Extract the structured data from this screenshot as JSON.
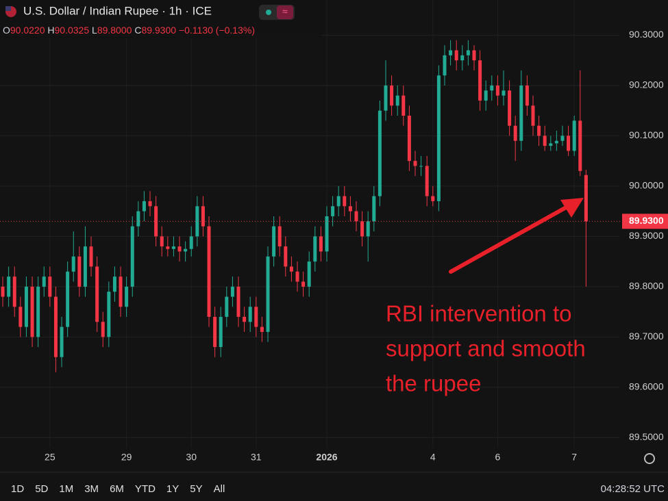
{
  "header": {
    "symbol": "U.S. Dollar / Indian Rupee · 1h · ICE",
    "ohlc": [
      {
        "key": "O",
        "value": "90.0220"
      },
      {
        "key": "H",
        "value": "90.0325"
      },
      {
        "key": "L",
        "value": "89.8000"
      },
      {
        "key": "C",
        "value": "89.9300"
      }
    ],
    "change": "−0.1130 (−0.13%)"
  },
  "chart_data": {
    "type": "candlestick",
    "open": [
      89.8,
      89.78,
      89.82,
      89.76,
      89.72,
      89.8,
      89.7,
      89.8,
      89.82,
      89.78,
      89.66,
      89.72,
      89.83,
      89.86,
      89.8,
      89.88,
      89.84,
      89.73,
      89.7,
      89.79,
      89.82,
      89.76,
      89.8,
      89.92,
      89.95,
      89.97,
      89.96,
      89.9,
      89.88,
      89.875,
      89.88,
      89.87,
      89.875,
      89.9,
      89.96,
      89.92,
      89.74,
      89.68,
      89.74,
      89.78,
      89.8,
      89.74,
      89.73,
      89.76,
      89.72,
      89.71,
      89.86,
      89.92,
      89.88,
      89.84,
      89.83,
      89.81,
      89.8,
      89.85,
      89.9,
      89.87,
      89.94,
      89.96,
      89.98,
      89.96,
      89.95,
      89.93,
      89.9,
      89.93,
      89.98,
      90.15,
      90.2,
      90.16,
      90.18,
      90.14,
      90.05,
      90.04,
      90.04,
      89.98,
      89.97,
      90.22,
      90.26,
      90.27,
      90.25,
      90.26,
      90.27,
      90.25,
      90.17,
      90.19,
      90.2,
      90.18,
      90.19,
      90.12,
      90.09,
      90.2,
      90.16,
      90.12,
      90.1,
      90.08,
      90.085,
      90.09,
      90.1,
      90.07,
      90.13,
      90.022
    ],
    "high": [
      89.82,
      89.84,
      89.84,
      89.78,
      89.82,
      89.82,
      89.82,
      89.84,
      89.84,
      89.8,
      89.74,
      89.85,
      89.91,
      89.88,
      89.92,
      89.9,
      89.86,
      89.75,
      89.81,
      89.84,
      89.84,
      89.82,
      89.94,
      89.97,
      89.99,
      89.99,
      89.98,
      89.92,
      89.9,
      89.9,
      89.9,
      89.89,
      89.92,
      89.98,
      89.98,
      89.94,
      89.76,
      89.76,
      89.8,
      89.82,
      89.82,
      89.76,
      89.78,
      89.78,
      89.74,
      89.88,
      89.94,
      89.94,
      89.9,
      89.86,
      89.85,
      89.83,
      89.87,
      89.92,
      89.92,
      89.96,
      89.98,
      90.0,
      90.0,
      89.98,
      89.97,
      89.95,
      89.95,
      90.0,
      90.17,
      90.25,
      90.22,
      90.2,
      90.2,
      90.16,
      90.07,
      90.06,
      90.06,
      90.0,
      90.24,
      90.28,
      90.29,
      90.29,
      90.28,
      90.29,
      90.28,
      90.27,
      90.21,
      90.22,
      90.22,
      90.23,
      90.21,
      90.14,
      90.23,
      90.22,
      90.18,
      90.14,
      90.12,
      90.1,
      90.11,
      90.12,
      90.12,
      90.14,
      90.23,
      90.0325
    ],
    "low": [
      89.76,
      89.76,
      89.74,
      89.7,
      89.7,
      89.68,
      89.68,
      89.78,
      89.76,
      89.63,
      89.64,
      89.7,
      89.81,
      89.78,
      89.78,
      89.82,
      89.71,
      89.68,
      89.68,
      89.77,
      89.74,
      89.74,
      89.78,
      89.9,
      89.93,
      89.94,
      89.88,
      89.86,
      89.86,
      89.86,
      89.85,
      89.85,
      89.86,
      89.88,
      89.9,
      89.72,
      89.66,
      89.66,
      89.72,
      89.76,
      89.72,
      89.71,
      89.71,
      89.7,
      89.69,
      89.69,
      89.84,
      89.86,
      89.82,
      89.81,
      89.79,
      89.78,
      89.78,
      89.83,
      89.85,
      89.85,
      89.92,
      89.94,
      89.94,
      89.93,
      89.91,
      89.88,
      89.85,
      89.91,
      89.96,
      90.13,
      90.14,
      90.14,
      90.12,
      90.03,
      90.02,
      90.02,
      89.96,
      89.96,
      89.95,
      90.2,
      90.24,
      90.23,
      90.23,
      90.24,
      90.23,
      90.15,
      90.15,
      90.17,
      90.16,
      90.16,
      90.1,
      90.05,
      90.07,
      90.14,
      90.1,
      90.08,
      90.07,
      90.07,
      90.07,
      90.08,
      90.06,
      90.06,
      90.02,
      89.8
    ],
    "close": [
      89.78,
      89.82,
      89.76,
      89.72,
      89.8,
      89.7,
      89.8,
      89.82,
      89.78,
      89.66,
      89.72,
      89.83,
      89.86,
      89.8,
      89.88,
      89.84,
      89.73,
      89.7,
      89.79,
      89.82,
      89.76,
      89.8,
      89.92,
      89.95,
      89.97,
      89.96,
      89.9,
      89.88,
      89.875,
      89.88,
      89.87,
      89.875,
      89.9,
      89.96,
      89.92,
      89.74,
      89.68,
      89.74,
      89.78,
      89.8,
      89.74,
      89.73,
      89.76,
      89.72,
      89.71,
      89.86,
      89.92,
      89.88,
      89.84,
      89.83,
      89.81,
      89.8,
      89.85,
      89.9,
      89.87,
      89.94,
      89.96,
      89.98,
      89.96,
      89.95,
      89.93,
      89.9,
      89.93,
      89.98,
      90.15,
      90.2,
      90.16,
      90.18,
      90.14,
      90.05,
      90.04,
      90.04,
      89.98,
      89.97,
      90.22,
      90.26,
      90.27,
      90.25,
      90.26,
      90.27,
      90.25,
      90.17,
      90.19,
      90.2,
      90.18,
      90.19,
      90.12,
      90.09,
      90.2,
      90.16,
      90.12,
      90.1,
      90.08,
      90.085,
      90.09,
      90.1,
      90.07,
      90.13,
      90.03,
      89.93
    ],
    "up_color": "#22ab94",
    "down_color": "#f23645",
    "xlim": [
      -0.47,
      104.77
    ],
    "xticks": [
      {
        "value": 8,
        "label": "25"
      },
      {
        "value": 21,
        "label": "29"
      },
      {
        "value": 32,
        "label": "30"
      },
      {
        "value": 43,
        "label": "31"
      },
      {
        "value": 55,
        "label": "2026"
      },
      {
        "value": 73,
        "label": "4"
      },
      {
        "value": 84,
        "label": "6"
      },
      {
        "value": 97,
        "label": "7"
      }
    ],
    "ylim": [
      89.48,
      90.37
    ],
    "yticks": [
      {
        "value": 89.5,
        "label": "89.5000"
      },
      {
        "value": 89.6,
        "label": "89.6000"
      },
      {
        "value": 89.7,
        "label": "89.7000"
      },
      {
        "value": 89.8,
        "label": "89.8000"
      },
      {
        "value": 89.9,
        "label": "89.9000"
      },
      {
        "value": 90.0,
        "label": "90.0000"
      },
      {
        "value": 90.1,
        "label": "90.1000"
      },
      {
        "value": 90.2,
        "label": "90.2000"
      },
      {
        "value": 90.3,
        "label": "90.3000"
      }
    ],
    "grid": true,
    "last_price": {
      "value": 89.93,
      "label": "89.9300"
    },
    "annotation": [
      "RBI intervention to",
      "support and smooth",
      "the rupee"
    ]
  },
  "toolbar": {
    "ranges": [
      "1D",
      "5D",
      "1M",
      "3M",
      "6M",
      "YTD",
      "1Y",
      "5Y",
      "All"
    ],
    "time": "04:28:52 UTC"
  }
}
